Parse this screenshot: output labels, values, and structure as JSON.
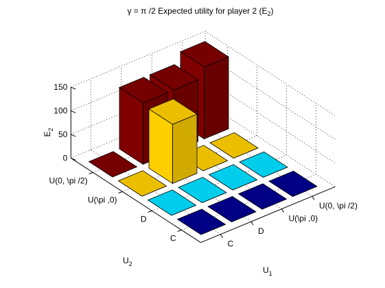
{
  "chart_data": {
    "type": "bar3",
    "title": "γ = π /2 Expected utility for player 2 (E",
    "title_sub": "2",
    "title_end": ")",
    "xlabel": "U",
    "xlabel_sub": "1",
    "ylabel": "U",
    "ylabel_sub": "2",
    "zlabel": "E",
    "zlabel_sub": "2",
    "zlim": [
      0,
      150
    ],
    "zticks": [
      "0",
      "50",
      "100",
      "150"
    ],
    "u1_categories": [
      "C",
      "D",
      "U(\\pi ,0)",
      "U(0, \\pi /2)"
    ],
    "u2_categories": [
      "C",
      "D",
      "U(\\pi ,0)",
      "U(0, \\pi /2)"
    ],
    "grid": "on",
    "bars": [
      {
        "u1": 0,
        "u2": 0,
        "value": 0
      },
      {
        "u1": 0,
        "u2": 1,
        "value": 0
      },
      {
        "u1": 0,
        "u2": 2,
        "value": 0
      },
      {
        "u1": 0,
        "u2": 3,
        "value": 0
      },
      {
        "u1": 1,
        "u2": 0,
        "value": 0
      },
      {
        "u1": 1,
        "u2": 1,
        "value": 0
      },
      {
        "u1": 1,
        "u2": 2,
        "value": 125
      },
      {
        "u1": 1,
        "u2": 3,
        "value": 130
      },
      {
        "u1": 2,
        "u2": 0,
        "value": 0
      },
      {
        "u1": 2,
        "u2": 1,
        "value": 0
      },
      {
        "u1": 2,
        "u2": 2,
        "value": 0
      },
      {
        "u1": 2,
        "u2": 3,
        "value": 130
      },
      {
        "u1": 3,
        "u2": 0,
        "value": 0
      },
      {
        "u1": 3,
        "u2": 1,
        "value": 0
      },
      {
        "u1": 3,
        "u2": 2,
        "value": 0
      },
      {
        "u1": 3,
        "u2": 3,
        "value": 152
      }
    ],
    "row_colors": [
      "#00008f",
      "#00dfff",
      "#ffcf00",
      "#800000"
    ]
  }
}
